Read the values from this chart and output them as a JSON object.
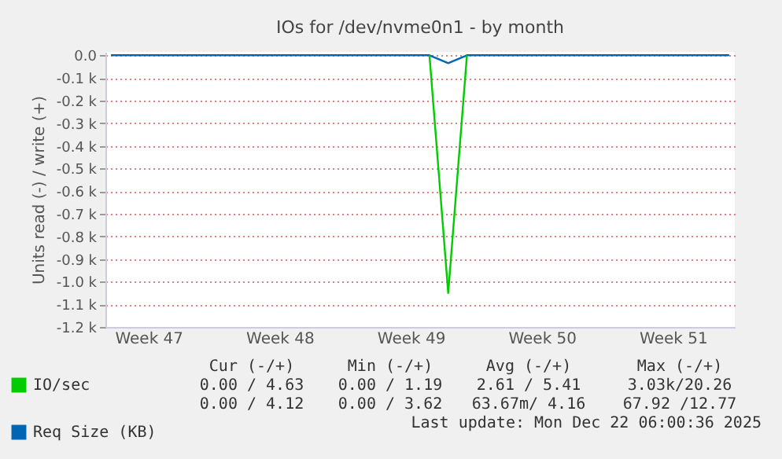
{
  "chart_data": {
    "type": "line",
    "title": "IOs for /dev/nvme0n1 - by month",
    "ylabel": "Units read (-) / write (+)",
    "categories": [
      null,
      null,
      "Week 47",
      null,
      null,
      null,
      null,
      null,
      null,
      "Week 48",
      null,
      null,
      null,
      null,
      null,
      null,
      "Week 49",
      null,
      null,
      null,
      null,
      null,
      null,
      "Week 50",
      null,
      null,
      null,
      null,
      null,
      null,
      "Week 51",
      null,
      null,
      null
    ],
    "ylim": [
      -1200,
      15
    ],
    "yticks": [
      {
        "value": 0,
        "label": "0.0"
      },
      {
        "value": -100,
        "label": "-0.1 k"
      },
      {
        "value": -200,
        "label": "-0.2 k"
      },
      {
        "value": -300,
        "label": "-0.3 k"
      },
      {
        "value": -400,
        "label": "-0.4 k"
      },
      {
        "value": -500,
        "label": "-0.5 k"
      },
      {
        "value": -600,
        "label": "-0.6 k"
      },
      {
        "value": -700,
        "label": "-0.7 k"
      },
      {
        "value": -800,
        "label": "-0.8 k"
      },
      {
        "value": -900,
        "label": "-0.9 k"
      },
      {
        "value": -1000,
        "label": "-1.0 k"
      },
      {
        "value": -1100,
        "label": "-1.1 k"
      },
      {
        "value": -1200,
        "label": "-1.2 k"
      }
    ],
    "grid": "y",
    "legend": "bottom left",
    "series": [
      {
        "name": "IO/sec",
        "color": "#00cc00",
        "values": [
          null,
          null,
          null,
          null,
          null,
          null,
          null,
          null,
          null,
          null,
          null,
          null,
          null,
          null,
          null,
          null,
          null,
          0,
          -1050,
          0,
          null,
          null,
          null,
          null,
          null,
          null,
          null,
          null,
          null,
          null,
          null,
          null,
          null,
          null
        ]
      },
      {
        "name": "Req Size (KB)",
        "color": "#0066b3",
        "values": [
          0,
          0,
          0,
          0,
          0,
          0,
          0,
          0,
          0,
          0,
          0,
          0,
          0,
          0,
          0,
          0,
          0,
          0,
          -35,
          0,
          0,
          0,
          0,
          0,
          0,
          0,
          0,
          0,
          0,
          0,
          0,
          0,
          0,
          0
        ]
      }
    ],
    "annotations": [
      "Cur (-/+)",
      "Min (-/+)",
      "Avg (-/+)",
      "Max (-/+)",
      "0.00 / 4.63",
      "0.00 / 1.19",
      "2.61 / 5.41",
      "3.03k/20.26",
      "0.00 / 4.12",
      "0.00 / 3.62",
      "63.67m/ 4.16",
      "67.92 /12.77",
      "Last update: Mon Dec 22 06:00:36 2025"
    ]
  }
}
